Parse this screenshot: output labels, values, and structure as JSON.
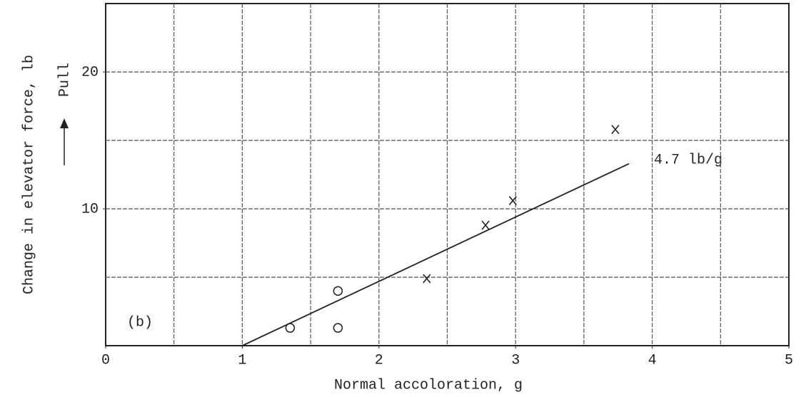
{
  "chart_data": {
    "type": "scatter",
    "xlabel": "Normal accoloration, g",
    "ylabel": "Change in elevator force, lb",
    "direction_label": "Pull",
    "annotations": [
      "4.7 lb/g",
      "(b)"
    ],
    "xlim": [
      0,
      5
    ],
    "ylim": [
      0,
      25
    ],
    "xticks": [
      0,
      1,
      2,
      3,
      4,
      5
    ],
    "xgrid": [
      0.5,
      1,
      1.5,
      2,
      2.5,
      3,
      3.5,
      4,
      4.5
    ],
    "yticks": [
      10,
      20
    ],
    "ygrid": [
      5,
      10,
      15,
      20
    ],
    "grid": true,
    "series": [
      {
        "marker": "circle",
        "color": "#222",
        "x": [
          1.35,
          1.7,
          1.7
        ],
        "values": [
          1.3,
          4.0,
          1.3
        ]
      },
      {
        "marker": "cross",
        "color": "#222",
        "x": [
          2.35,
          2.78,
          2.98,
          3.73
        ],
        "values": [
          4.9,
          8.8,
          10.6,
          15.8
        ]
      },
      {
        "marker": "line",
        "color": "#222",
        "x": [
          1,
          3.83
        ],
        "values": [
          0,
          13.3
        ]
      }
    ]
  }
}
